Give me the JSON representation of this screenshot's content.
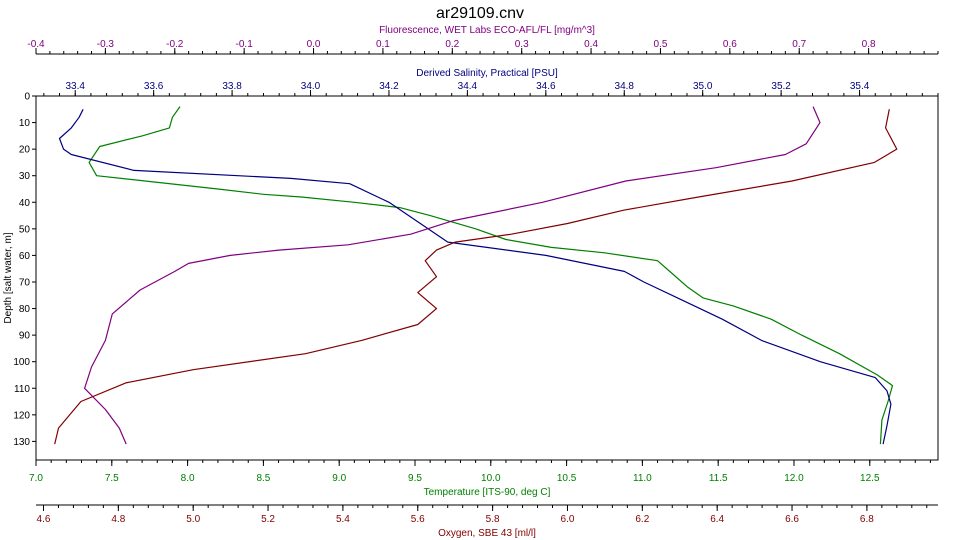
{
  "chart_data": {
    "type": "line",
    "title": "ar29109.cnv",
    "grid": false,
    "legend": "none",
    "y_axis": {
      "label": "Depth [salt water, m]",
      "range": [
        0,
        137
      ],
      "ticks": [
        "0",
        "10",
        "20",
        "30",
        "40",
        "50",
        "60",
        "70",
        "80",
        "90",
        "100",
        "110",
        "120",
        "130"
      ],
      "inverted": true,
      "color": "#000000"
    },
    "x_axes": [
      {
        "id": "fluorescence",
        "label": "Fluorescence, WET Labs ECO-AFL/FL [mg/m^3]",
        "position": "top",
        "range": [
          -0.4,
          0.9
        ],
        "ticks": [
          "-0.4",
          "-0.3",
          "-0.2",
          "-0.1",
          "0.0",
          "0.1",
          "0.2",
          "0.3",
          "0.4",
          "0.5",
          "0.6",
          "0.7",
          "0.8"
        ],
        "color": "#800080"
      },
      {
        "id": "salinity",
        "label": "Derived Salinity, Practical [PSU]",
        "position": "top-inner",
        "range": [
          33.3,
          35.6
        ],
        "ticks": [
          "33.4",
          "33.6",
          "33.8",
          "34.0",
          "34.2",
          "34.4",
          "34.6",
          "34.8",
          "35.0",
          "35.2",
          "35.4"
        ],
        "color": "#000080"
      },
      {
        "id": "temperature",
        "label": "Temperature [ITS-90, deg C]",
        "position": "bottom-inner",
        "range": [
          7.0,
          12.95
        ],
        "ticks": [
          "7.0",
          "7.5",
          "8.0",
          "8.5",
          "9.0",
          "9.5",
          "10.0",
          "10.5",
          "11.0",
          "11.5",
          "12.0",
          "12.5"
        ],
        "color": "#008000"
      },
      {
        "id": "oxygen",
        "label": "Oxygen, SBE 43 [ml/l]",
        "position": "bottom",
        "range": [
          4.58,
          6.99
        ],
        "ticks": [
          "4.6",
          "4.8",
          "5.0",
          "5.2",
          "5.4",
          "5.6",
          "5.8",
          "6.0",
          "6.2",
          "6.4",
          "6.6",
          "6.8"
        ],
        "color": "#800000"
      }
    ],
    "series": [
      {
        "axis": "temperature",
        "color": "#008000",
        "x": [
          7.95,
          7.9,
          7.88,
          7.7,
          7.42,
          7.35,
          7.4,
          8.2,
          8.5,
          8.75,
          9.1,
          9.4,
          9.6,
          9.9,
          10.1,
          10.4,
          10.75,
          11.1,
          11.2,
          11.3,
          11.4,
          11.6,
          11.85,
          12.05,
          12.3,
          12.55,
          12.65,
          12.62,
          12.58,
          12.57
        ],
        "y": [
          4,
          8,
          12,
          15,
          19,
          25,
          30,
          35,
          37,
          38,
          40,
          42,
          45,
          50,
          54,
          57,
          59,
          62,
          67,
          72,
          76,
          79,
          84,
          90,
          97,
          105,
          109,
          115,
          122,
          131
        ]
      },
      {
        "axis": "salinity",
        "color": "#000080",
        "x": [
          33.42,
          33.41,
          33.39,
          33.36,
          33.37,
          33.39,
          33.55,
          33.95,
          34.1,
          34.2,
          34.35,
          34.6,
          34.8,
          34.85,
          34.95,
          35.05,
          35.15,
          35.3,
          35.44,
          35.47,
          35.48,
          35.47,
          35.46
        ],
        "y": [
          5,
          8,
          12,
          16,
          20,
          22,
          28,
          31,
          33,
          40,
          55,
          60,
          66,
          70,
          77,
          84,
          92,
          100,
          106,
          111,
          116,
          124,
          131
        ]
      },
      {
        "axis": "fluorescence",
        "color": "#800080",
        "x": [
          0.72,
          0.73,
          0.71,
          0.68,
          0.58,
          0.45,
          0.33,
          0.2,
          0.14,
          0.05,
          -0.05,
          -0.12,
          -0.18,
          -0.2,
          -0.25,
          -0.29,
          -0.3,
          -0.32,
          -0.33,
          -0.3,
          -0.28,
          -0.27
        ],
        "y": [
          4,
          10,
          18,
          22,
          27,
          32,
          40,
          47,
          52,
          56,
          58,
          60,
          63,
          66,
          73,
          82,
          92,
          102,
          110,
          118,
          125,
          131
        ]
      },
      {
        "axis": "oxygen",
        "color": "#800000",
        "x": [
          6.86,
          6.85,
          6.88,
          6.82,
          6.6,
          6.35,
          6.15,
          6.0,
          5.85,
          5.7,
          5.65,
          5.62,
          5.65,
          5.6,
          5.65,
          5.6,
          5.45,
          5.3,
          5.0,
          4.82,
          4.7,
          4.64,
          4.63
        ],
        "y": [
          5,
          12,
          20,
          25,
          32,
          38,
          43,
          48,
          52,
          55,
          58,
          62,
          68,
          74,
          80,
          86,
          92,
          97,
          103,
          108,
          115,
          125,
          131
        ]
      }
    ]
  }
}
